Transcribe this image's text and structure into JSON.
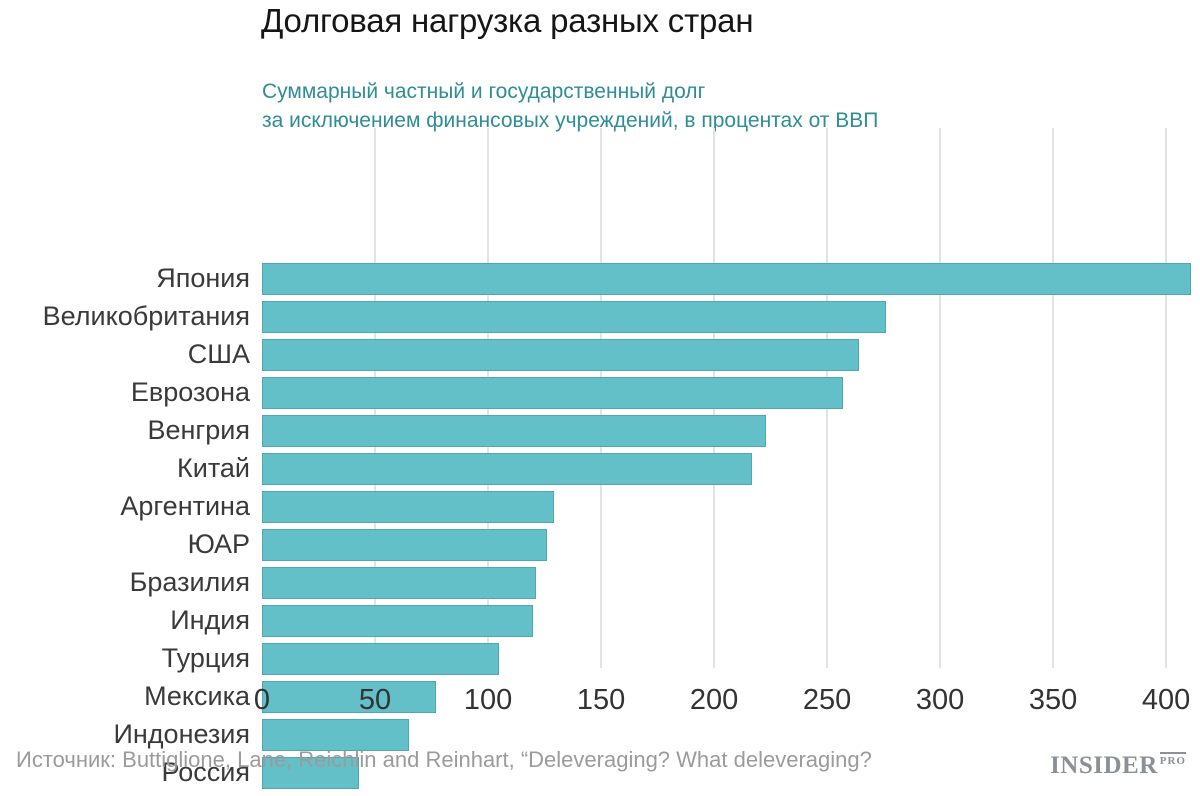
{
  "title": "Долговая нагрузка разных стран",
  "subtitle": {
    "line1": "Суммарный частный и государственный долг",
    "line2": "за исключением финансовых учреждений, в процентах от ВВП"
  },
  "chart_data": {
    "type": "bar",
    "orientation": "horizontal",
    "title": "Долговая нагрузка разных стран",
    "subtitle": "Суммарный частный и государственный долг за исключением финансовых учреждений, в процентах от ВВП",
    "categories": [
      "Япония",
      "Великобритания",
      "США",
      "Еврозона",
      "Венгрия",
      "Китай",
      "Аргентина",
      "ЮАР",
      "Бразилия",
      "Индия",
      "Турция",
      "Мексика",
      "Индонезия",
      "Россия"
    ],
    "values": [
      411,
      276,
      264,
      257,
      223,
      217,
      129,
      126,
      121,
      120,
      105,
      77,
      65,
      43
    ],
    "xlim": [
      0,
      411
    ],
    "x_ticks": [
      0,
      50,
      100,
      150,
      200,
      250,
      300,
      350,
      400
    ],
    "grid": true,
    "legend": "none",
    "bar_color": "#63bfc8",
    "bar_border_color": "#4ea7b1",
    "gridline_color": "#e3e3e3",
    "subtitle_color": "#2f8d96"
  },
  "footer": {
    "source_text": "Источник: Buttiglione, Lane, Reichlin and Reinhart, “Deleveraging? What deleveraging?",
    "logo_main": "INSIDER",
    "logo_sub": "PRO"
  }
}
